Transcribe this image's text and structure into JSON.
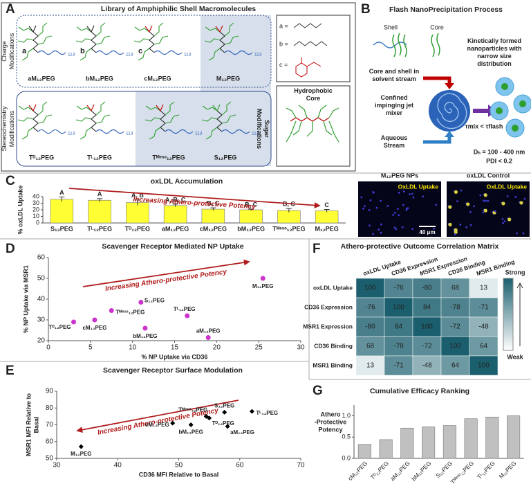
{
  "panel_labels": [
    "A",
    "B",
    "C",
    "D",
    "E",
    "F",
    "G"
  ],
  "panel_a": {
    "title": "Library of Amphiphilic Shell Macromolecules",
    "row_labels": [
      [
        "Charge",
        "Modifications"
      ],
      [
        "Stereochemistry",
        "Modifications"
      ]
    ],
    "molecules": [
      "aM₁₂PEG",
      "bM₁₂PEG",
      "cM₁₂PEG",
      "M₁₂PEG",
      "Tᴰ₁₂PEG",
      "Tᴸ₁₂PEG",
      "Tᴹᵉˢᵒ₁₂PEG",
      "S₁₂PEG"
    ],
    "molecule_letters": [
      "a",
      "b",
      "c"
    ],
    "repeat_unit": "113",
    "sugar_label": [
      "Sugar",
      "Modifications"
    ],
    "substituents": [
      "a =",
      "b =",
      "c ="
    ],
    "core_label": [
      "Hydrophobic",
      "Core"
    ]
  },
  "panel_b": {
    "title": "Flash NanoPrecipitation Process",
    "shell": "Shell",
    "core": "Core",
    "solvent": [
      "Core and shell in",
      "solvent stream"
    ],
    "mixer": [
      "Confined",
      "impinging jet",
      "mixer"
    ],
    "aqueous": [
      "Aqueous",
      "Stream"
    ],
    "product": [
      "Kinetically formed",
      "nanoparticles with",
      "narrow size",
      "distribution"
    ],
    "timescale": "τmix < τflash",
    "size": "Dₕ = 100 - 400 nm",
    "pdi": "PDI < 0.2"
  },
  "panel_c_images": {
    "titles": [
      "M₁₂PEG NPs",
      "oxLDL Control"
    ],
    "stain_label": "OxLDL Uptake",
    "scale_bar": "40 μm"
  },
  "chart_data": [
    {
      "type": "bar",
      "title": "oxLDL Accumulation",
      "ylabel": "% oxLDL Uptake",
      "categories": [
        "S₁₂PEG",
        "Tᴸ₁₂PEG",
        "Tᴰ₁₂PEG",
        "aM₁₂PEG",
        "cM₁₂PEG",
        "bM₁₂PEG",
        "Tᴹᵉˢᵒ₁₂PEG",
        "M₁₂PEG"
      ],
      "values": [
        36,
        34.5,
        31,
        26.5,
        21,
        20,
        19,
        18.5
      ],
      "errors": [
        3.5,
        2.5,
        4,
        2,
        2,
        1,
        3,
        2
      ],
      "annotations": [
        "A",
        "A",
        "A, B",
        "A, B, C",
        "B, C",
        "B, C",
        "B, C",
        "C"
      ],
      "arrow_label": "Increasing Athero-protective Potency",
      "color": "#ffff33",
      "ylim": [
        0,
        40
      ],
      "yticks": [
        0,
        10,
        20,
        30,
        40
      ]
    },
    {
      "type": "scatter",
      "title": "Scavenger Receptor Mediated NP Uptake",
      "xlabel": "% NP Uptake via CD36",
      "ylabel": "% NP Uptake via MSR1",
      "labels": [
        "Tᴰ₁₂PEG",
        "cM₁₂PEG",
        "Tᴹᵉˢᵒ₁₂PEG",
        "S₁₂PEG",
        "bM₁₂PEG",
        "Tᴸ₁₂PEG",
        "aM₁₂PEG",
        "M₁₂PEG"
      ],
      "x": [
        3,
        5.5,
        7.5,
        11,
        11.5,
        16.5,
        19,
        25.5
      ],
      "y": [
        29,
        30,
        34.5,
        38.5,
        26,
        32,
        21.5,
        50
      ],
      "marker": "circle",
      "color": "#cc33cc",
      "arrow_label": "Increasing Athero-protective Potency",
      "xlim": [
        0,
        30
      ],
      "xticks": [
        0,
        5,
        10,
        15,
        20,
        25,
        30
      ],
      "ylim": [
        20,
        60
      ],
      "yticks": [
        20,
        30,
        40,
        50,
        60
      ]
    },
    {
      "type": "heatmap",
      "title": "Athero-protective Outcome Correlation Matrix",
      "rows": [
        "oxLDL Uptake",
        "CD36 Expression",
        "MSR1 Expression",
        "CD36 Binding",
        "MSR1 Binding"
      ],
      "columns": [
        "oxLDL Uptake",
        "CD36 Expression",
        "MSR1 Expression",
        "CD36 Binding",
        "MSR1 Binding"
      ],
      "values": [
        [
          100,
          -76,
          -80,
          68,
          13
        ],
        [
          -76,
          100,
          84,
          -78,
          -71
        ],
        [
          -80,
          84,
          100,
          -72,
          -48
        ],
        [
          68,
          -78,
          -72,
          100,
          64
        ],
        [
          13,
          -71,
          -48,
          64,
          100
        ]
      ],
      "colorbar_labels": [
        "Strong",
        "Weak"
      ]
    },
    {
      "type": "scatter",
      "title": "Scavenger Receptor Surface Modulation",
      "xlabel": "CD36 MFI Relative to Basal",
      "ylabel": [
        "MSR1 MFI Relative to",
        "Basal"
      ],
      "labels": [
        "M₁₂PEG",
        "cM₁₂PEG",
        "bM₁₂PEG",
        "Tᴹᵉˢᵒ₁₂PEG",
        "Tᴰ₁₂PEG",
        "S₁₂PEG",
        "aM₁₂PEG",
        "Tᴸ₁₂PEG"
      ],
      "x": [
        34,
        49,
        52,
        54.5,
        55,
        57.5,
        58,
        62
      ],
      "y": [
        57,
        71,
        70,
        75,
        74,
        77.5,
        69,
        78
      ],
      "marker": "diamond",
      "color": "#000000",
      "arrow_label": "Increasing Athero-protective Potency",
      "xlim": [
        30,
        70
      ],
      "xticks": [
        30,
        40,
        50,
        60,
        70
      ],
      "ylim": [
        50,
        90
      ],
      "yticks": [
        50,
        60,
        70,
        80,
        90
      ]
    },
    {
      "type": "bar",
      "title": "Cumulative Efficacy Ranking",
      "ylabel": [
        "Athero",
        "-Protective",
        "Potency"
      ],
      "categories": [
        "cM₁₂PEG",
        "Tᴰ₁₂PEG",
        "aM₁₂PEG",
        "bM₁₂PEG",
        "S₁₂PEG",
        "Tᴹᵉˢᵒ₁₂PEG",
        "Tᴸ₁₂PEG",
        "M₁₂PEG"
      ],
      "values": [
        0.33,
        0.44,
        0.71,
        0.74,
        0.77,
        0.93,
        0.97,
        1.0
      ],
      "color": "#c0c0c0",
      "ylim": [
        0,
        1.25
      ],
      "yticks": [
        {
          "value": 0,
          "label": "0.0"
        },
        {
          "value": 0.5,
          "label": "0.5"
        },
        {
          "value": 1,
          "label": "1.0"
        }
      ]
    }
  ]
}
